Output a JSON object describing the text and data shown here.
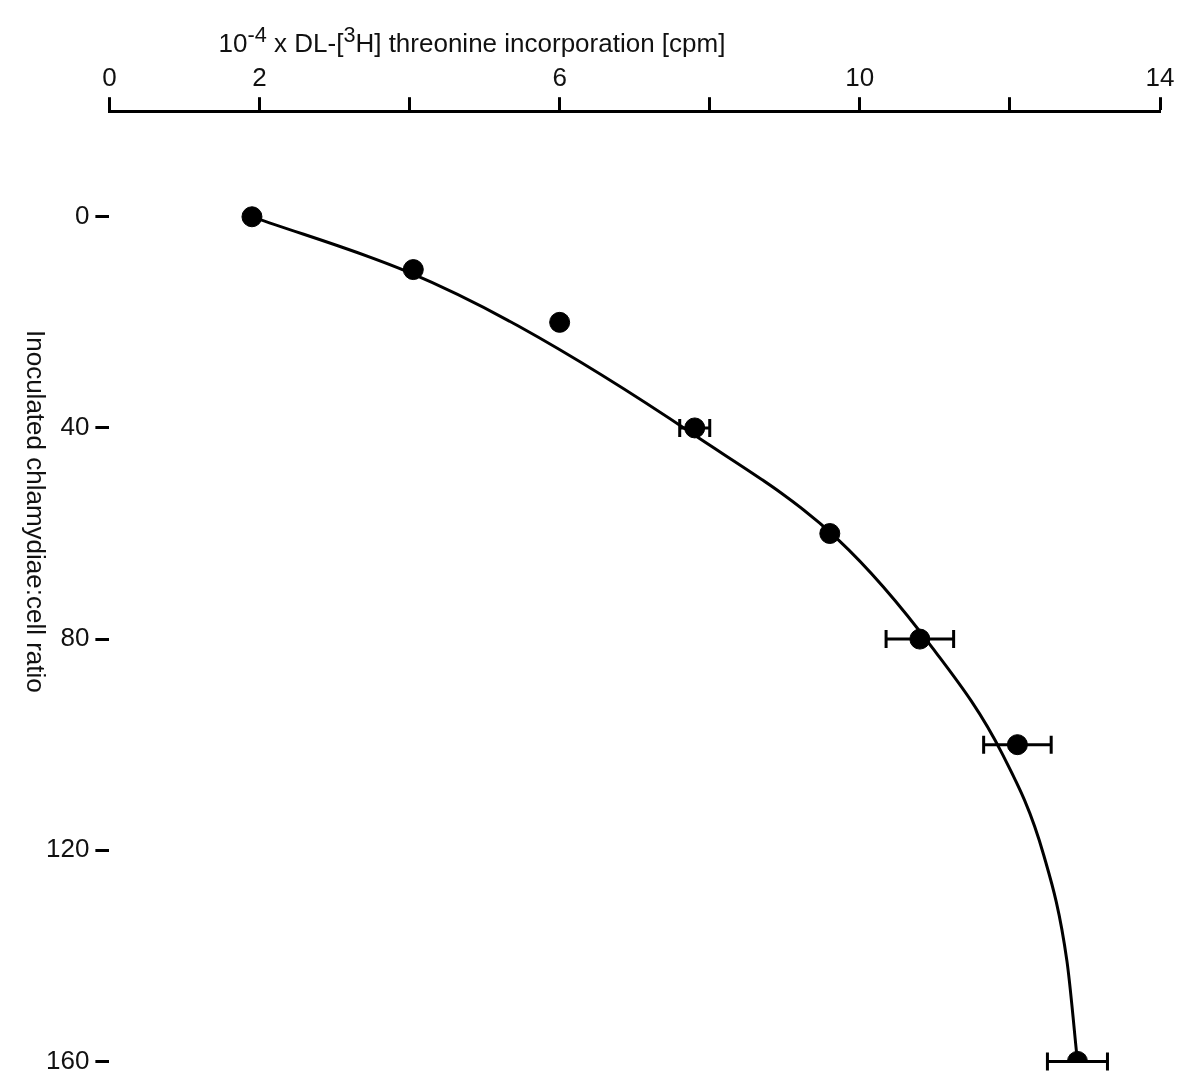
{
  "chart_data": {
    "type": "scatter",
    "xlabel": "10$^{-4}$ x DL-[$^{3}$H] threonine incorporation [cpm]",
    "ylabel": "Inoculated chlamydiae:cell ratio",
    "xlim": [
      0,
      14
    ],
    "xticks": [
      0,
      2,
      {
        "value": 4,
        "label": null
      },
      6,
      {
        "value": 8,
        "label": null
      },
      10,
      {
        "value": 12,
        "label": null
      },
      14
    ],
    "ylim": [
      160,
      -20
    ],
    "yticks": [
      0,
      40,
      80,
      120,
      160
    ],
    "grid": false,
    "legend": false,
    "series": [
      {
        "marker": "circle",
        "color": "#000000",
        "x": [
          1.9,
          4.05,
          6.0,
          7.8,
          9.6,
          10.8,
          12.1,
          12.9
        ],
        "values": [
          0,
          10,
          20,
          40,
          60,
          80,
          100,
          160
        ],
        "xerrors": [
          null,
          null,
          null,
          0.2,
          null,
          0.45,
          0.45,
          0.4
        ]
      },
      {
        "type": "line",
        "marker": "none",
        "color": "#000000",
        "x": [
          1.9,
          3.97,
          5.45,
          7.78,
          9.7,
          10.97,
          11.9,
          12.45,
          12.76,
          12.9
        ],
        "values": [
          0,
          10.4,
          20.7,
          41.2,
          61,
          81.7,
          101.8,
          120.9,
          141,
          160
        ]
      }
    ]
  }
}
